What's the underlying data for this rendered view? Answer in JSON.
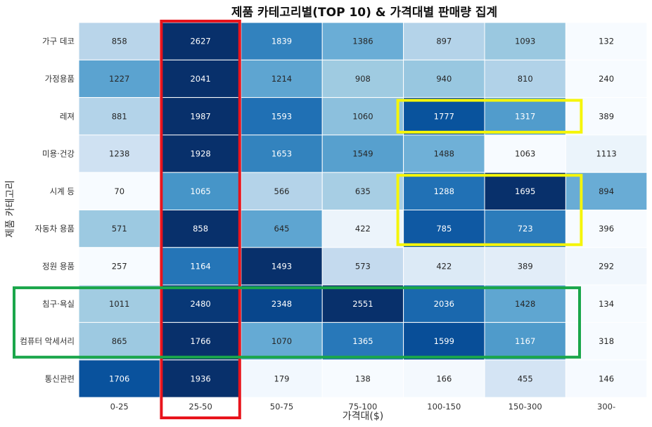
{
  "chart_data": {
    "type": "heatmap",
    "title": "제품 카테고리별(TOP 10) & 가격대별 판매량 집계",
    "xlabel": "가격대($)",
    "ylabel": "제품 카테고리",
    "x_categories": [
      "0-25",
      "25-50",
      "50-75",
      "75-100",
      "100-150",
      "150-300",
      "300-"
    ],
    "y_categories": [
      "가구 데코",
      "가정용품",
      "레져",
      "미용·건강",
      "시계 등",
      "자동차 용품",
      "정원 용품",
      "침구·욕실",
      "컴퓨터 악세서리",
      "통신관련"
    ],
    "values": [
      [
        858,
        2627,
        1839,
        1386,
        897,
        1093,
        132
      ],
      [
        1227,
        2041,
        1214,
        908,
        940,
        810,
        240
      ],
      [
        881,
        1987,
        1593,
        1060,
        1777,
        1317,
        389
      ],
      [
        1238,
        1928,
        1653,
        1549,
        1488,
        1063,
        1113
      ],
      [
        70,
        1065,
        566,
        635,
        1288,
        1695,
        894
      ],
      [
        571,
        858,
        645,
        422,
        785,
        723,
        396
      ],
      [
        257,
        1164,
        1493,
        573,
        422,
        389,
        292
      ],
      [
        1011,
        2480,
        2348,
        2551,
        2036,
        1428,
        134
      ],
      [
        865,
        1766,
        1070,
        1365,
        1599,
        1167,
        318
      ],
      [
        1706,
        1936,
        179,
        138,
        166,
        455,
        146
      ]
    ],
    "colormap": "Blues",
    "color_scaling": "per-row",
    "highlight_boxes": [
      {
        "color": "#e8141c",
        "cols": [
          "25-50"
        ],
        "rows": "all"
      },
      {
        "color": "#f5f50a",
        "cols": [
          "100-150",
          "150-300"
        ],
        "rows": [
          "레져"
        ]
      },
      {
        "color": "#f5f50a",
        "cols": [
          "100-150",
          "150-300"
        ],
        "rows": [
          "시계 등",
          "자동차 용품"
        ]
      },
      {
        "color": "#1aa64a",
        "cols": "all",
        "rows": [
          "침구·욕실",
          "컴퓨터 악세서리"
        ]
      }
    ]
  }
}
